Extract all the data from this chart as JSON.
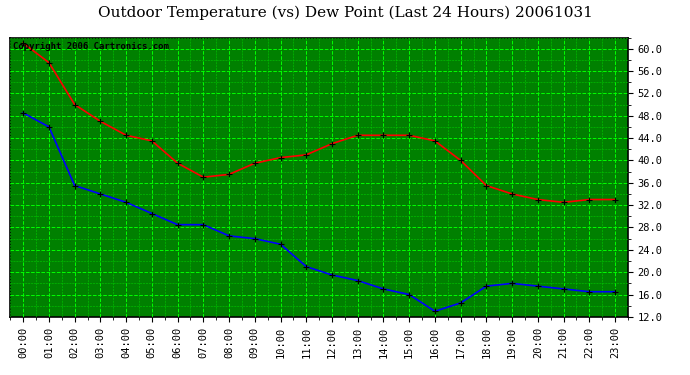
{
  "title": "Outdoor Temperature (vs) Dew Point (Last 24 Hours) 20061031",
  "copyright_text": "Copyright 2006 Cartronics.com",
  "plot_bg_color": "#008000",
  "grid_color": "#00ff00",
  "grid_minor_color": "#00cc00",
  "x_labels": [
    "00:00",
    "01:00",
    "02:00",
    "03:00",
    "04:00",
    "05:00",
    "06:00",
    "07:00",
    "08:00",
    "09:00",
    "10:00",
    "11:00",
    "12:00",
    "13:00",
    "14:00",
    "15:00",
    "16:00",
    "17:00",
    "18:00",
    "19:00",
    "20:00",
    "21:00",
    "22:00",
    "23:00"
  ],
  "temp_data": [
    61.0,
    57.5,
    50.0,
    47.0,
    44.5,
    43.5,
    39.5,
    37.0,
    37.5,
    39.5,
    40.5,
    41.0,
    43.0,
    44.5,
    44.5,
    44.5,
    43.5,
    40.0,
    35.5,
    34.0,
    33.0,
    32.5,
    33.0,
    33.0
  ],
  "dew_data": [
    48.5,
    46.0,
    35.5,
    34.0,
    32.5,
    30.5,
    28.5,
    28.5,
    26.5,
    26.0,
    25.0,
    21.0,
    19.5,
    18.5,
    17.0,
    16.0,
    13.0,
    14.5,
    17.5,
    18.0,
    17.5,
    17.0,
    16.5,
    16.5
  ],
  "temp_color": "#ff0000",
  "dew_color": "#0000ff",
  "marker": "+",
  "marker_size": 5,
  "line_width": 1.2,
  "ylim": [
    12.0,
    62.0
  ],
  "yticks": [
    12.0,
    16.0,
    20.0,
    24.0,
    28.0,
    32.0,
    36.0,
    40.0,
    44.0,
    48.0,
    52.0,
    56.0,
    60.0
  ],
  "outer_bg": "#ffffff",
  "title_fontsize": 11,
  "tick_fontsize": 7.5,
  "copyright_fontsize": 6.5
}
